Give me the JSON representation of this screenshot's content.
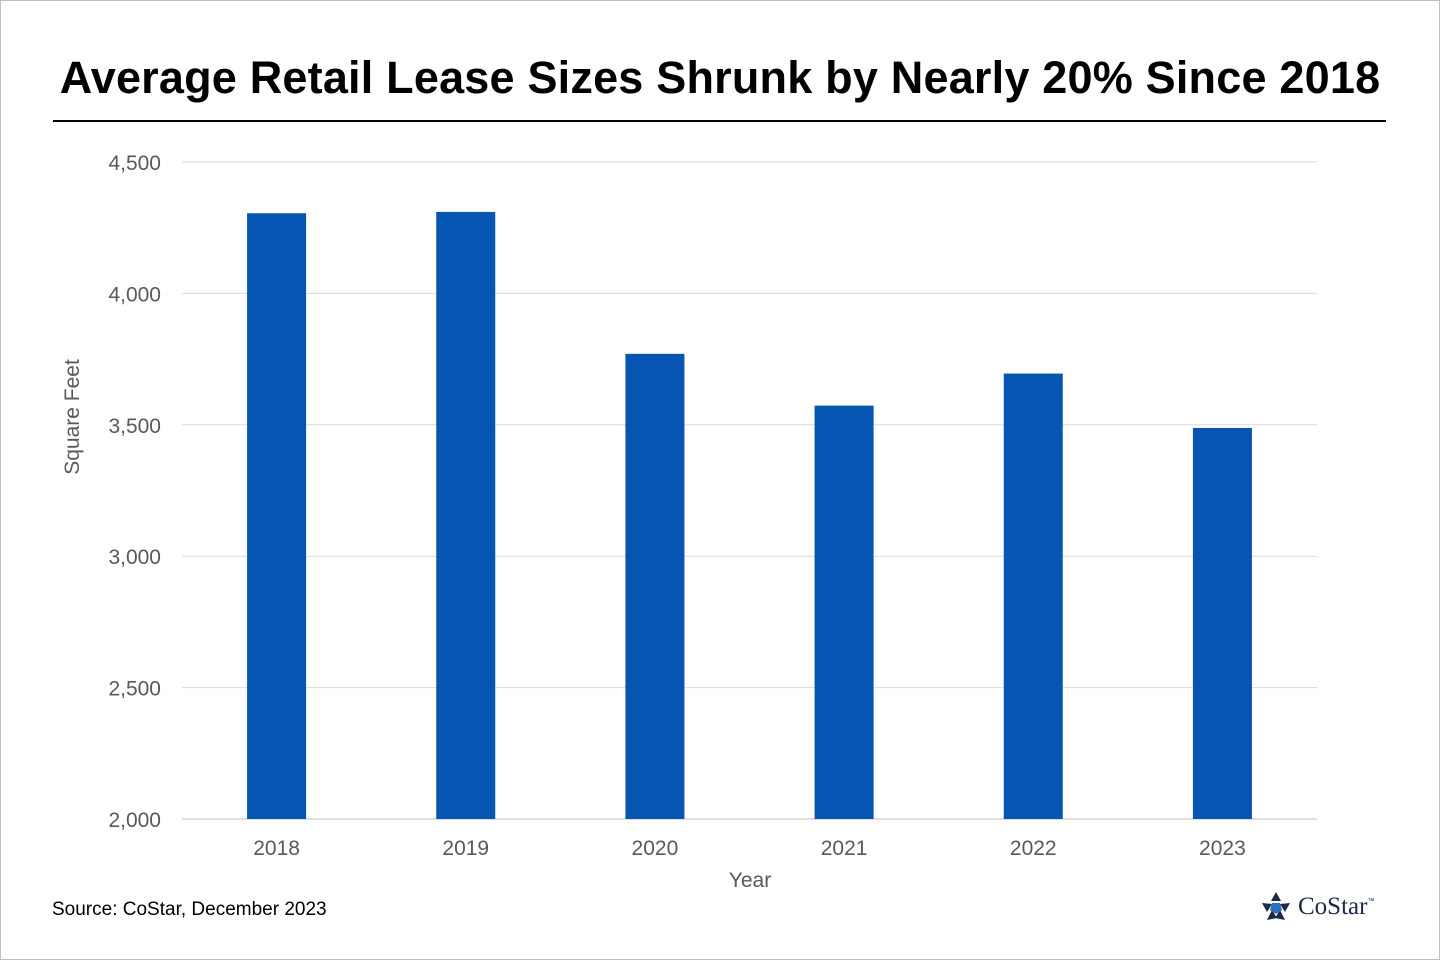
{
  "title": "Average Retail Lease Sizes Shrunk by Nearly 20% Since 2018",
  "source": "Source: CoStar, December 2023",
  "logo": {
    "text": "CoStar",
    "tm": "™",
    "icon": "costar-star-icon"
  },
  "colors": {
    "bar": "#0655b2",
    "grid": "#d9d9d9",
    "axis_text": "#595959"
  },
  "chart_data": {
    "type": "bar",
    "categories": [
      "2018",
      "2019",
      "2020",
      "2021",
      "2022",
      "2023"
    ],
    "values": [
      4305,
      4310,
      3770,
      3573,
      3695,
      3488
    ],
    "xlabel": "Year",
    "ylabel": "Square Feet",
    "ylim": [
      2000,
      4500
    ],
    "yticks": [
      2000,
      2500,
      3000,
      3500,
      4000,
      4500
    ],
    "ytick_labels": [
      "2,000",
      "2,500",
      "3,000",
      "3,500",
      "4,000",
      "4,500"
    ],
    "grid": true,
    "legend": "none"
  }
}
